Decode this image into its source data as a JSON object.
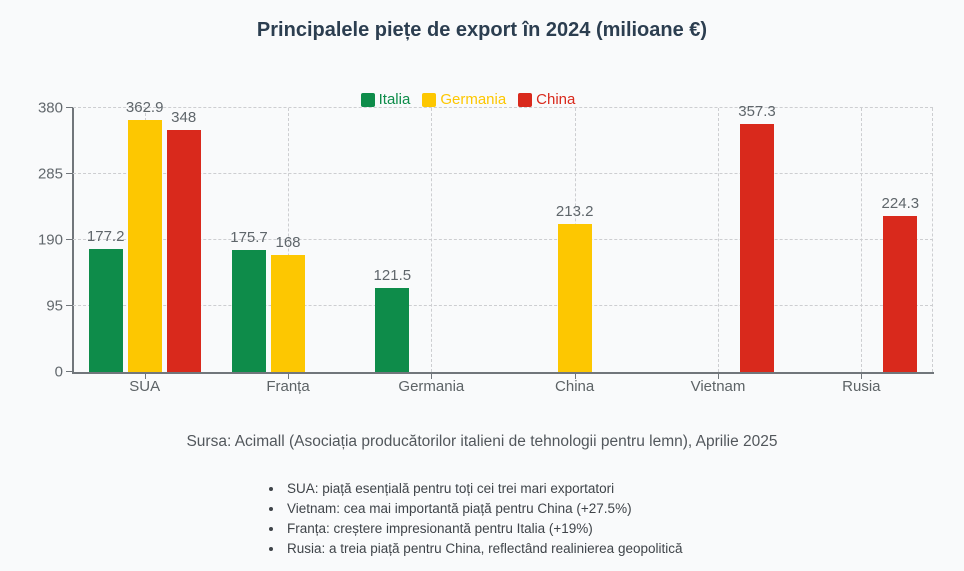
{
  "title": "Principalele piețe de export în 2024 (milioane €)",
  "source_note": "Sursa: Acimall (Asociația producătorilor italieni de tehnologii pentru lemn), Aprilie 2025",
  "notes": [
    "SUA: piață esențială pentru toți cei trei mari exportatori",
    "Vietnam: cea mai importantă piață pentru China (+27.5%)",
    "Franța: creștere impresionantă pentru Italia (+19%)",
    "Rusia: a treia piață pentru China, reflectând realinierea geopolitică"
  ],
  "chart_data": {
    "type": "bar",
    "categories": [
      "SUA",
      "Franța",
      "Germania",
      "China",
      "Vietnam",
      "Rusia"
    ],
    "series": [
      {
        "name": "Italia",
        "color": "#0e8c4a",
        "values": [
          177.2,
          175.7,
          121.5,
          null,
          null,
          null
        ]
      },
      {
        "name": "Germania",
        "color": "#fdc701",
        "values": [
          362.9,
          168,
          null,
          213.2,
          null,
          null
        ]
      },
      {
        "name": "China",
        "color": "#d9291c",
        "values": [
          348,
          null,
          null,
          null,
          357.3,
          224.3
        ]
      }
    ],
    "title": "Principalele piețe de export în 2024 (milioane €)",
    "xlabel": "",
    "ylabel": "",
    "ylim": [
      0,
      380
    ],
    "yticks": [
      0,
      95,
      190,
      285,
      380
    ],
    "grid": true,
    "legend_position": "top-center"
  }
}
